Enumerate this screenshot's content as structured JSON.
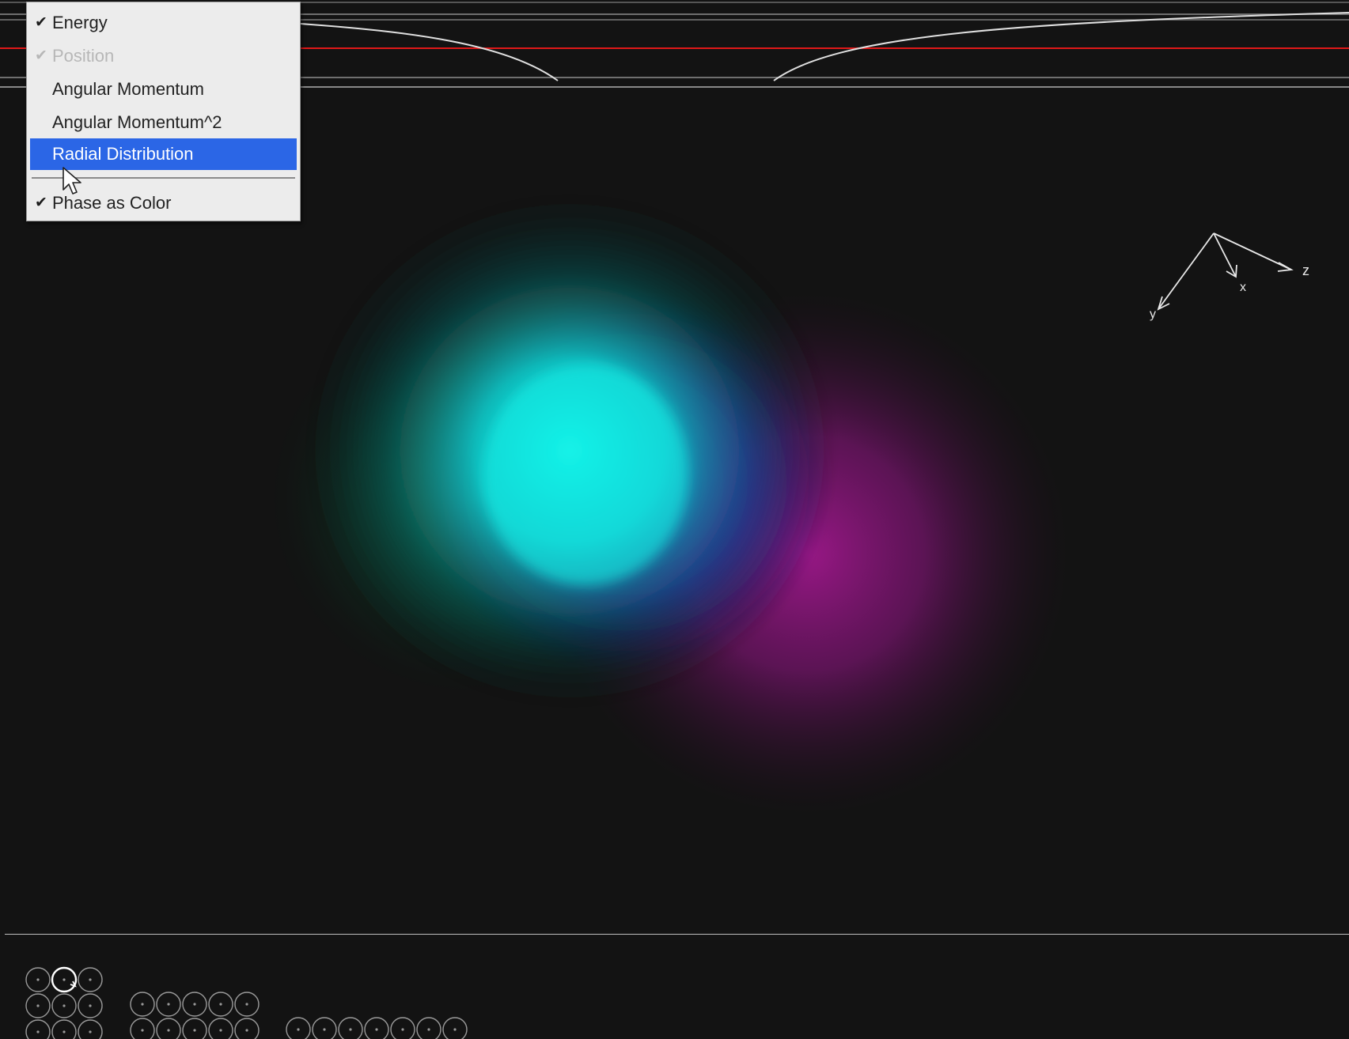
{
  "menu": {
    "items": [
      {
        "label": "Energy",
        "checked": true,
        "disabled": false,
        "selected": false
      },
      {
        "label": "Position",
        "checked": true,
        "disabled": true,
        "selected": false
      },
      {
        "label": "Angular Momentum",
        "checked": false,
        "disabled": false,
        "selected": false
      },
      {
        "label": "Angular Momentum^2",
        "checked": false,
        "disabled": false,
        "selected": false
      },
      {
        "label": "Radial Distribution",
        "checked": false,
        "disabled": false,
        "selected": true
      },
      {
        "label": "Phase as Color",
        "checked": true,
        "disabled": false,
        "selected": false
      }
    ],
    "check_glyph": "✔",
    "selected_color": "#2b66e6"
  },
  "axes": {
    "z_label": "z",
    "x_label": "x",
    "y_label": "y"
  },
  "colors": {
    "background": "#131313",
    "energy_line": "#e01818",
    "lobe_positive": "#12f0e6",
    "lobe_mid": "#1f4dff",
    "lobe_negative": "#a0188c"
  },
  "state_panel": {
    "groups": [
      {
        "name": "n1",
        "rows": 3,
        "cols": 3,
        "active_index": 1
      },
      {
        "name": "n2",
        "rows": 2,
        "cols": 5,
        "active_index": -1
      },
      {
        "name": "n3",
        "rows": 1,
        "cols": 7,
        "active_index": -1
      }
    ]
  },
  "icons": {
    "cursor": "arrow-pointer-icon",
    "state": "circle-plus-icon"
  }
}
